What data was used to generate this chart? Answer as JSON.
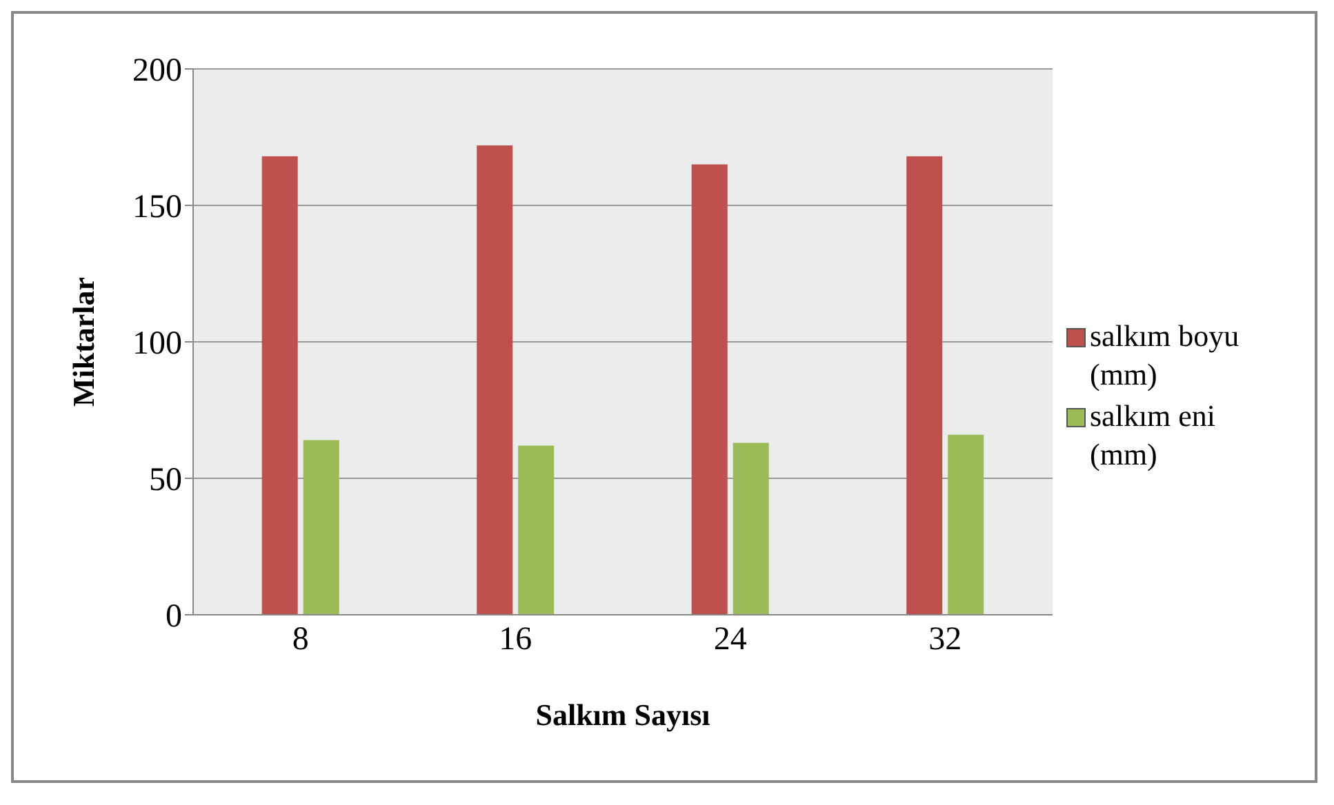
{
  "chart_data": {
    "type": "bar",
    "xlabel": "Salkım Sayısı",
    "ylabel": "Miktarlar",
    "categories": [
      "8",
      "16",
      "24",
      "32"
    ],
    "series": [
      {
        "name": "salkım boyu (mm)",
        "color": "#c0504d",
        "values": [
          168,
          172,
          165,
          168
        ]
      },
      {
        "name": "salkım eni (mm)",
        "color": "#9bbb59",
        "values": [
          64,
          62,
          63,
          66
        ]
      }
    ],
    "ylim": [
      0,
      200
    ],
    "yticks": [
      0,
      50,
      100,
      150,
      200
    ],
    "grid": "y",
    "legend": "right"
  }
}
